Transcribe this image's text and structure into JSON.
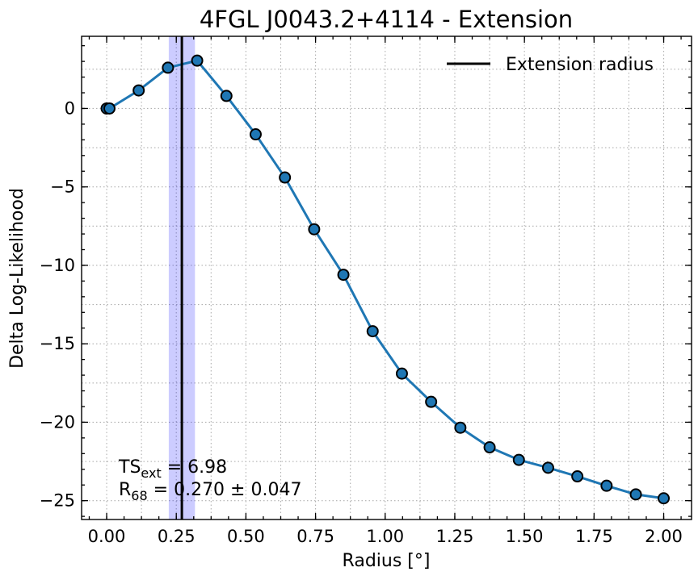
{
  "chart_data": {
    "type": "line",
    "title": "4FGL J0043.2+4114 - Extension",
    "xlabel": "Radius [°]",
    "ylabel": "Delta Log-Likelihood",
    "xlim": [
      -0.09,
      2.1
    ],
    "ylim": [
      -26.2,
      4.6
    ],
    "xticks": [
      0.0,
      0.25,
      0.5,
      0.75,
      1.0,
      1.25,
      1.5,
      1.75,
      2.0
    ],
    "xtick_labels": [
      "0.00",
      "0.25",
      "0.50",
      "0.75",
      "1.00",
      "1.25",
      "1.50",
      "1.75",
      "2.00"
    ],
    "yticks": [
      -25,
      -20,
      -15,
      -10,
      -5,
      0
    ],
    "ytick_labels": [
      "−25",
      "−20",
      "−15",
      "−10",
      "−5",
      "0"
    ],
    "grid": true,
    "series": [
      {
        "color": "#1f77b4",
        "x": [
          0.0,
          0.01,
          0.115,
          0.22,
          0.325,
          0.43,
          0.535,
          0.64,
          0.745,
          0.85,
          0.955,
          1.06,
          1.165,
          1.27,
          1.375,
          1.48,
          1.585,
          1.69,
          1.795,
          1.9,
          2.0
        ],
        "y": [
          0.0,
          0.0,
          1.15,
          2.6,
          3.05,
          0.8,
          -1.65,
          -4.4,
          -7.7,
          -10.6,
          -14.2,
          -16.9,
          -18.7,
          -20.35,
          -21.6,
          -22.4,
          -22.9,
          -23.45,
          -24.05,
          -24.6,
          -24.85
        ]
      }
    ],
    "extension_line": {
      "x": 0.27,
      "color": "#000000"
    },
    "extension_band": {
      "x_min": 0.223,
      "x_max": 0.317,
      "color": "#0000ff"
    },
    "legend": {
      "position": "top-right",
      "entries": [
        "Extension radius"
      ]
    },
    "annotation": {
      "ts_main": "TS",
      "ts_sub": "ext",
      "ts_value": " = 6.98",
      "r_main": "R",
      "r_sub": "68",
      "r_value": " = 0.270 ± 0.047"
    }
  }
}
